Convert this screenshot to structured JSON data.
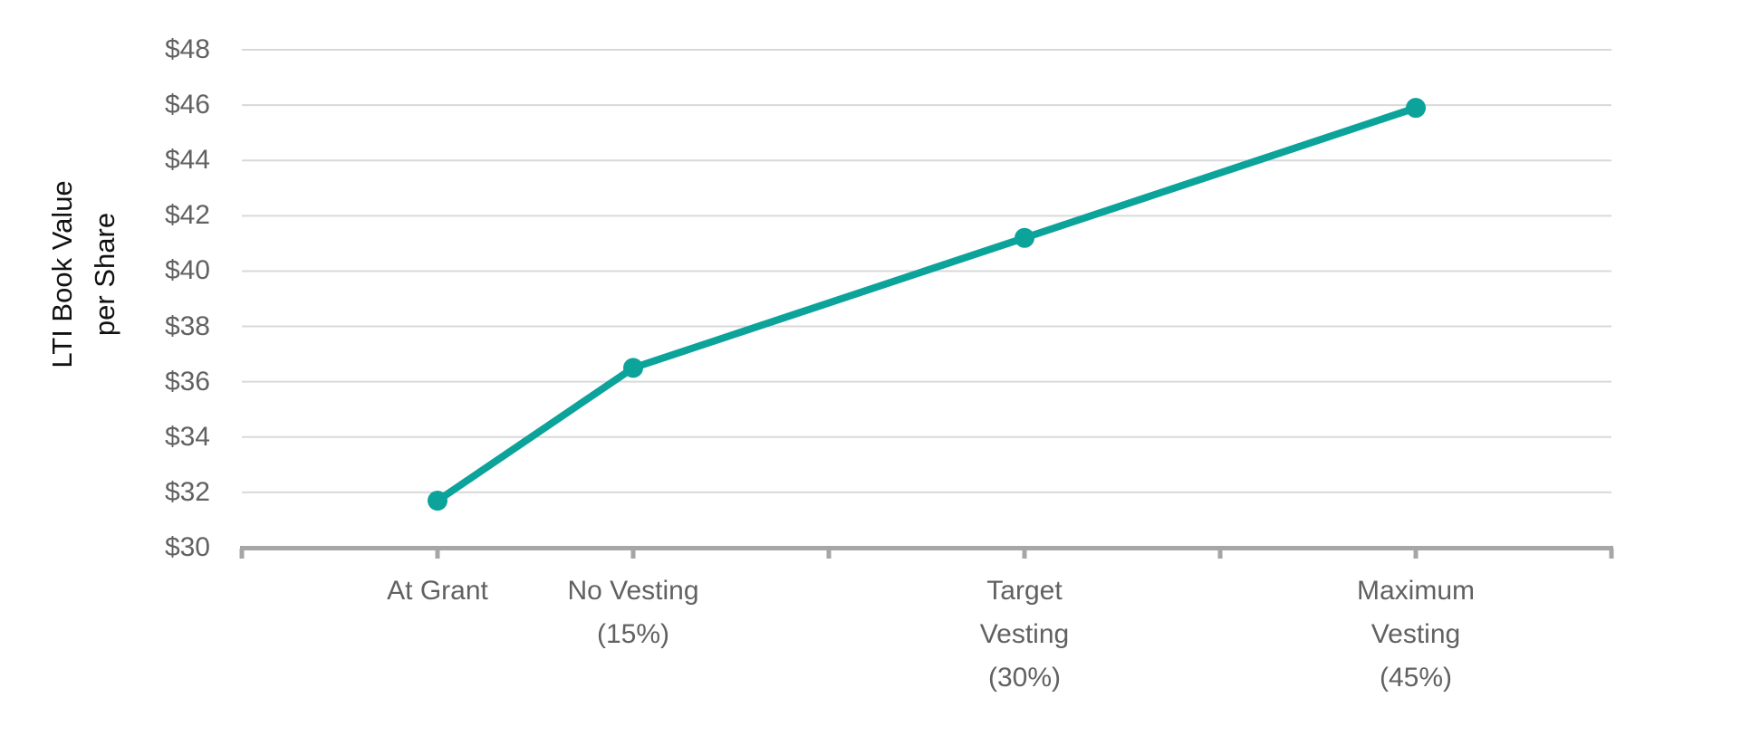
{
  "chart_data": {
    "type": "line",
    "title": "",
    "xlabel": "",
    "ylabel": "LTI Book Value per Share",
    "ylabel_lines": [
      "LTI Book Value",
      "per Share"
    ],
    "categories": [
      "At Grant",
      "No Vesting\n(15%)",
      "Target\nVesting\n(30%)",
      "Maximum\nVesting\n(45%)"
    ],
    "values": [
      31.7,
      36.5,
      41.2,
      45.9
    ],
    "x_positions": [
      1,
      2,
      4,
      6
    ],
    "x_axis_range": [
      0,
      7
    ],
    "x_tick_interval": 1,
    "ylim": [
      30,
      48
    ],
    "y_tick_interval": 2,
    "y_ticks": [
      30,
      32,
      34,
      36,
      38,
      40,
      42,
      44,
      46,
      48
    ],
    "y_tick_labels": [
      "$30",
      "$32",
      "$34",
      "$36",
      "$38",
      "$40",
      "$42",
      "$44",
      "$46",
      "$48"
    ],
    "grid": "horizontal",
    "legend": "none",
    "marker": "circle",
    "marker_radius": 11,
    "line_width": 8,
    "colors": {
      "series": "#0ba39a",
      "gridline": "#d9d9d9",
      "axis_line": "#a6a6a6",
      "tick_label": "#616161",
      "axis_title": "#111111",
      "background": "#ffffff"
    }
  }
}
